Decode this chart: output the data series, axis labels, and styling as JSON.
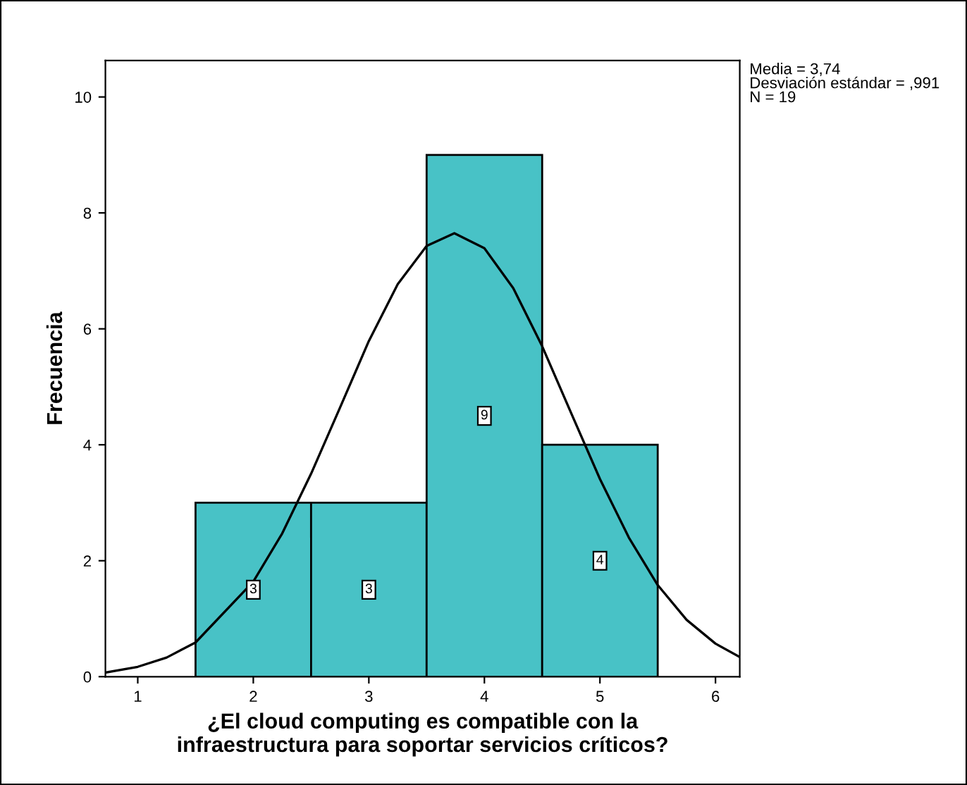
{
  "chart_data": {
    "type": "histogram",
    "xlabel": "¿El cloud computing es compatible con la\ninfraestructura para soportar servicios críticos?",
    "ylabel": "Frecuencia",
    "annotations": [
      "Media = 3,74",
      "Desviación estándar = ,991",
      "N = 19"
    ],
    "series": [
      {
        "bins": [
          1.5,
          2.5,
          3.5,
          4.5,
          5.5
        ],
        "values": [
          3,
          3,
          9,
          4
        ],
        "value_labels": [
          "3",
          "3",
          "9",
          "4"
        ],
        "color": "#48c2c6"
      },
      {
        "type": "line",
        "color": "#000000",
        "x": [
          0.72,
          1.0,
          1.25,
          1.5,
          2.0,
          2.25,
          2.5,
          2.75,
          3.0,
          3.25,
          3.5,
          3.74,
          4.0,
          4.25,
          4.5,
          4.75,
          5.0,
          5.25,
          5.5,
          5.75,
          6.0,
          6.21
        ],
        "values": [
          0.07,
          0.17,
          0.33,
          0.59,
          1.64,
          2.47,
          3.5,
          4.64,
          5.79,
          6.77,
          7.43,
          7.65,
          7.39,
          6.7,
          5.7,
          4.55,
          3.41,
          2.4,
          1.58,
          0.98,
          0.57,
          0.34
        ]
      }
    ],
    "xlim": [
      0.72,
      6.21
    ],
    "ylim": [
      0,
      10.63
    ],
    "xticks": [
      1,
      2,
      3,
      4,
      5,
      6
    ],
    "yticks": [
      0,
      2,
      4,
      6,
      8,
      10
    ],
    "grid": false,
    "marker": "none",
    "line_style": "solid"
  }
}
